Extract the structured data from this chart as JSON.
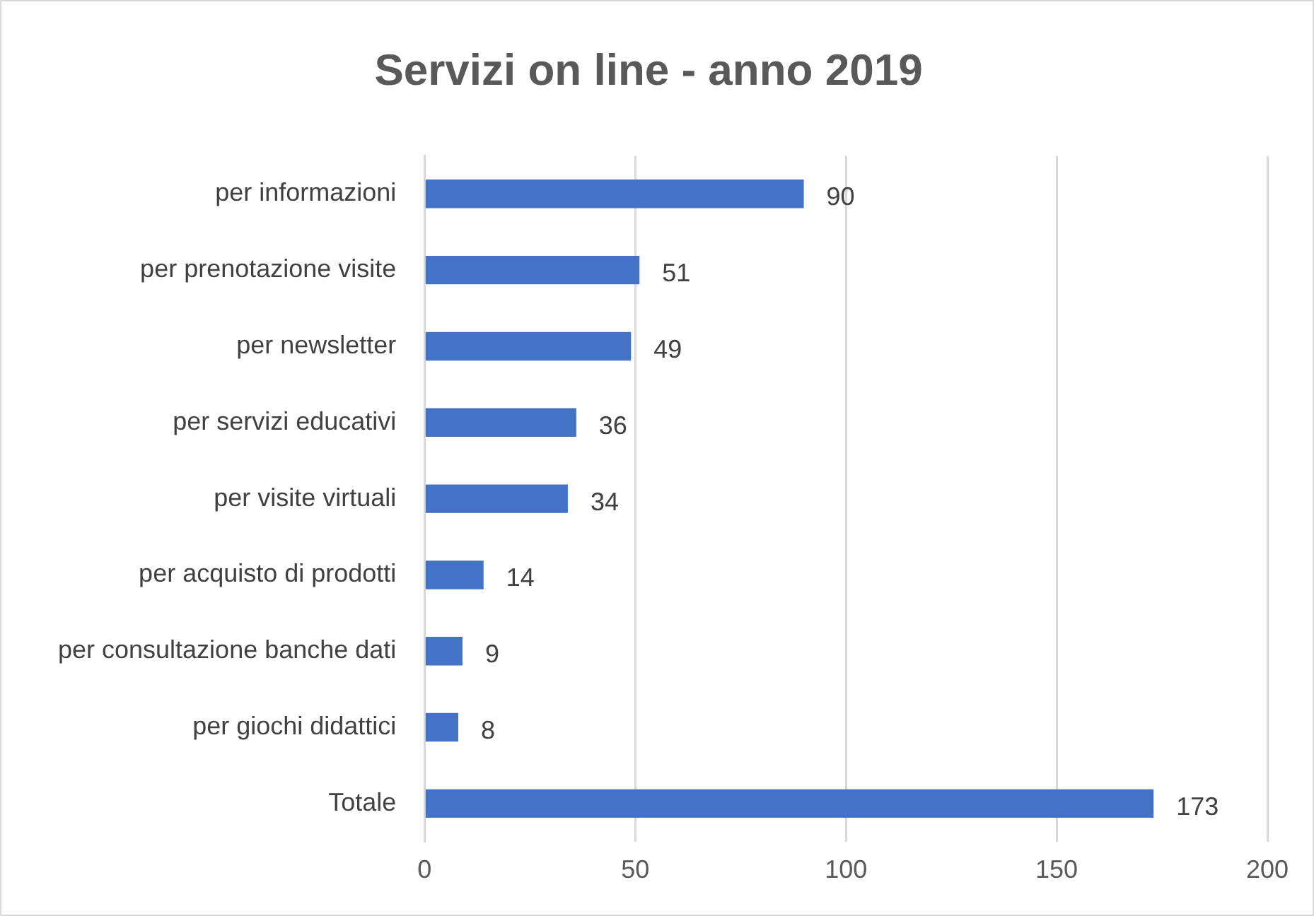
{
  "chart_data": {
    "type": "bar",
    "orientation": "horizontal",
    "title": "Servizi on line - anno 2019",
    "categories": [
      "per informazioni",
      "per prenotazione visite",
      "per newsletter",
      "per servizi educativi",
      "per visite virtuali",
      "per acquisto di prodotti",
      "per consultazione banche dati",
      "per giochi didattici",
      "Totale"
    ],
    "values": [
      90,
      51,
      49,
      36,
      34,
      14,
      9,
      8,
      173
    ],
    "color": "#4472c4",
    "xlim": [
      0,
      200
    ],
    "xticks": [
      0,
      50,
      100,
      150,
      200
    ],
    "grid": "x",
    "data_labels": true,
    "legend": false
  }
}
